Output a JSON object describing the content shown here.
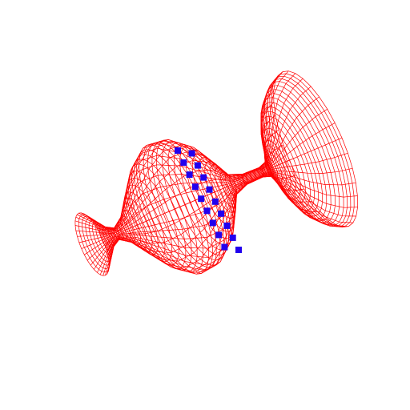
{
  "scene": {
    "background_color": "#ffffff",
    "mesh_color": "#ff0000",
    "marker_color": "#2200ee",
    "marker_count": 18,
    "surface_kind": "wireframe surface of revolution",
    "view": "3d perspective"
  }
}
